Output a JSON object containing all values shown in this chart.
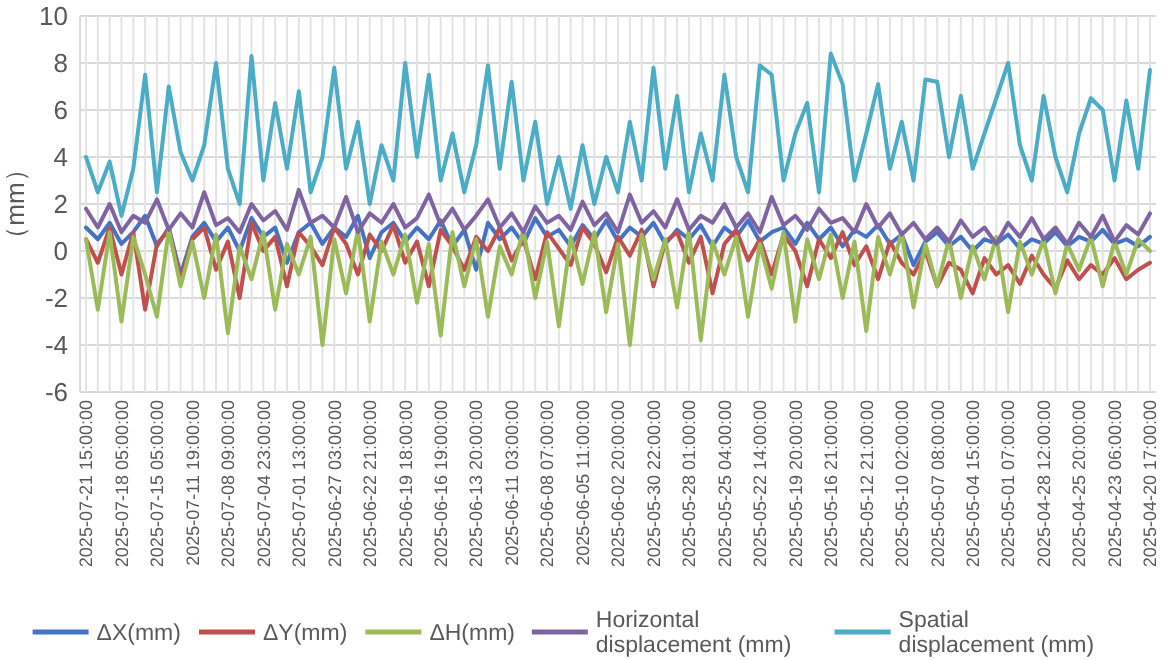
{
  "chart_data": {
    "type": "line",
    "ylabel": "（mm）",
    "categories": [
      "2025-07-21 15:00:00",
      null,
      null,
      "2025-07-18 05:00:00",
      null,
      null,
      "2025-07-15 05:00:00",
      null,
      null,
      "2025-07-11 19:00:00",
      null,
      null,
      "2025-07-08 09:00:00",
      null,
      null,
      "2025-07-04 23:00:00",
      null,
      null,
      "2025-07-01 13:00:00",
      null,
      null,
      "2025-06-27 03:00:00",
      null,
      null,
      "2025-06-22 21:00:00",
      null,
      null,
      "2025-06-19 18:00:00",
      null,
      null,
      "2025-06-16 19:00:00",
      null,
      null,
      "2025-06-13 20:00:00",
      null,
      null,
      "2025-06-11 03:00:00",
      null,
      null,
      "2025-06-08 07:00:00",
      null,
      null,
      "2025-06-05 11:00:00",
      null,
      null,
      "2025-06-02 20:00:00",
      null,
      null,
      "2025-05-30 22:00:00",
      null,
      null,
      "2025-05-28 01:00:00",
      null,
      null,
      "2025-05-25 04:00:00",
      null,
      null,
      "2025-05-22 14:00:00",
      null,
      null,
      "2025-05-19 20:00:00",
      null,
      null,
      "2025-05-16 21:00:00",
      null,
      null,
      "2025-05-12 21:00:00",
      null,
      null,
      "2025-05-10 02:00:00",
      null,
      null,
      "2025-05-07 08:00:00",
      null,
      null,
      "2025-05-04 15:00:00",
      null,
      null,
      "2025-05-01 07:00:00",
      null,
      null,
      "2025-04-28 12:00:00",
      null,
      null,
      "2025-04-25 20:00:00",
      null,
      null,
      "2025-04-23 06:00:00",
      null,
      null,
      "2025-04-20 17:00:00"
    ],
    "series": [
      {
        "name": "ΔX(mm)",
        "color": "#4472c4",
        "values": [
          1.0,
          0.5,
          1.2,
          0.3,
          0.8,
          1.5,
          0.2,
          1.0,
          -1.0,
          0.6,
          1.2,
          0.4,
          1.0,
          0.0,
          1.4,
          0.6,
          1.0,
          -0.5,
          0.8,
          1.2,
          0.3,
          1.0,
          0.6,
          1.5,
          -0.3,
          0.8,
          1.2,
          0.4,
          1.0,
          0.5,
          1.3,
          0.2,
          0.9,
          -0.8,
          1.2,
          0.5,
          1.0,
          0.3,
          1.4,
          0.6,
          0.9,
          0.2,
          1.1,
          0.5,
          1.3,
          0.4,
          1.0,
          0.6,
          1.2,
          0.3,
          0.9,
          0.5,
          1.1,
          0.2,
          1.0,
          0.6,
          1.3,
          0.4,
          0.8,
          1.0,
          0.3,
          1.2,
          0.5,
          1.0,
          0.2,
          0.9,
          0.6,
          1.1,
          0.3,
          0.7,
          -0.6,
          0.4,
          0.8,
          0.2,
          0.6,
          0.0,
          0.5,
          0.3,
          0.7,
          0.1,
          0.5,
          0.3,
          0.8,
          0.2,
          0.6,
          0.4,
          0.9,
          0.3,
          0.5,
          0.2,
          0.6
        ]
      },
      {
        "name": "ΔY(mm)",
        "color": "#c0504d",
        "values": [
          0.5,
          -0.5,
          1.0,
          -1.0,
          0.8,
          -2.5,
          0.3,
          0.9,
          -1.2,
          0.5,
          1.0,
          -0.8,
          0.4,
          -2.0,
          1.2,
          0.0,
          0.6,
          -1.5,
          0.8,
          0.2,
          -0.6,
          1.0,
          0.3,
          -1.0,
          0.7,
          0.0,
          1.1,
          -0.5,
          0.4,
          -1.5,
          0.9,
          0.2,
          -0.8,
          0.6,
          0.0,
          1.0,
          -0.4,
          0.5,
          -1.2,
          0.8,
          0.1,
          -0.6,
          1.0,
          0.3,
          -0.9,
          0.6,
          -0.2,
          0.9,
          -1.5,
          0.4,
          0.8,
          -0.5,
          0.6,
          -1.8,
          0.3,
          0.9,
          -0.4,
          0.5,
          -1.0,
          0.7,
          0.0,
          -1.5,
          0.5,
          -0.3,
          0.8,
          -0.6,
          0.2,
          -1.2,
          0.4,
          -0.5,
          -1.0,
          0.0,
          -1.5,
          -0.5,
          -0.8,
          -1.8,
          -0.3,
          -1.0,
          -0.6,
          -1.4,
          -0.2,
          -1.0,
          -1.6,
          -0.4,
          -1.2,
          -0.6,
          -1.0,
          -0.3,
          -1.2,
          -0.8,
          -0.5
        ]
      },
      {
        "name": "ΔH(mm)",
        "color": "#9bbb59",
        "values": [
          0.5,
          -2.5,
          0.8,
          -3.0,
          0.6,
          -1.0,
          -2.8,
          0.9,
          -1.5,
          0.4,
          -2.0,
          0.7,
          -3.5,
          0.2,
          -1.2,
          0.8,
          -2.5,
          0.3,
          -1.0,
          0.6,
          -4.0,
          0.5,
          -1.8,
          0.9,
          -3.0,
          0.4,
          -1.0,
          0.7,
          -2.2,
          0.3,
          -3.6,
          0.8,
          -1.5,
          0.5,
          -2.8,
          0.2,
          -1.0,
          0.9,
          -2.0,
          0.4,
          -3.2,
          0.6,
          -1.4,
          0.8,
          -2.6,
          0.3,
          -4.0,
          0.7,
          -1.2,
          0.5,
          -2.4,
          0.9,
          -3.8,
          0.4,
          -1.0,
          0.6,
          -2.8,
          0.3,
          -1.6,
          0.8,
          -3.0,
          0.5,
          -1.2,
          0.7,
          -2.0,
          0.4,
          -3.4,
          0.6,
          -1.0,
          0.8,
          -2.4,
          0.3,
          -1.5,
          0.5,
          -2.0,
          0.2,
          -1.2,
          0.6,
          -2.6,
          0.4,
          -1.0,
          0.5,
          -1.8,
          0.3,
          -0.8,
          0.6,
          -1.5,
          0.4,
          -1.0,
          0.5,
          0.0
        ]
      },
      {
        "name": "Horizontal displacement (mm)",
        "color": "#8064a2",
        "values": [
          1.8,
          1.0,
          2.0,
          0.8,
          1.5,
          1.2,
          2.2,
          0.9,
          1.6,
          1.0,
          2.5,
          1.1,
          1.4,
          0.8,
          2.0,
          1.3,
          1.7,
          0.9,
          2.6,
          1.2,
          1.5,
          1.0,
          2.3,
          0.8,
          1.6,
          1.2,
          2.0,
          1.0,
          1.4,
          2.4,
          1.1,
          1.8,
          0.9,
          1.5,
          2.2,
          1.0,
          1.6,
          0.8,
          1.9,
          1.2,
          1.5,
          0.9,
          2.1,
          1.1,
          1.6,
          0.8,
          2.4,
          1.2,
          1.7,
          1.0,
          2.2,
          0.9,
          1.5,
          1.2,
          2.0,
          1.0,
          1.6,
          0.8,
          2.3,
          1.1,
          1.5,
          0.9,
          1.8,
          1.2,
          1.4,
          0.8,
          2.0,
          1.0,
          1.6,
          0.7,
          1.2,
          0.5,
          1.0,
          0.4,
          1.3,
          0.6,
          1.0,
          0.3,
          1.2,
          0.6,
          1.4,
          0.5,
          1.0,
          0.3,
          1.2,
          0.6,
          1.5,
          0.4,
          1.1,
          0.7,
          1.6
        ]
      },
      {
        "name": "Spatial displacement (mm)",
        "color": "#4bacc6",
        "values": [
          4.0,
          2.5,
          3.8,
          1.5,
          3.5,
          7.5,
          2.5,
          7.0,
          4.2,
          3.0,
          4.5,
          8.0,
          3.5,
          2.0,
          8.3,
          3.0,
          6.3,
          3.5,
          6.8,
          2.5,
          4.0,
          7.8,
          3.5,
          5.5,
          2.0,
          4.5,
          3.0,
          8.0,
          4.0,
          7.5,
          3.0,
          5.0,
          2.5,
          4.5,
          7.9,
          3.5,
          7.2,
          3.0,
          5.5,
          2.0,
          4.0,
          1.8,
          4.5,
          2.0,
          4.0,
          2.5,
          5.5,
          3.0,
          7.8,
          3.5,
          6.6,
          2.5,
          5.0,
          3.0,
          7.5,
          4.0,
          2.5,
          7.9,
          7.5,
          3.0,
          5.0,
          6.3,
          2.5,
          8.4,
          7.1,
          3.0,
          5.0,
          7.1,
          3.5,
          5.5,
          3.0,
          7.3,
          7.2,
          4.0,
          6.6,
          3.5,
          5.0,
          6.5,
          8.0,
          4.5,
          3.0,
          6.6,
          4.0,
          2.5,
          5.0,
          6.5,
          6.0,
          3.0,
          6.4,
          3.5,
          7.7
        ]
      }
    ],
    "ylim": [
      -6,
      10
    ],
    "yticks": [
      -6,
      -4,
      -2,
      0,
      2,
      4,
      6,
      8,
      10
    ],
    "grid": true,
    "legend": "bottom"
  }
}
